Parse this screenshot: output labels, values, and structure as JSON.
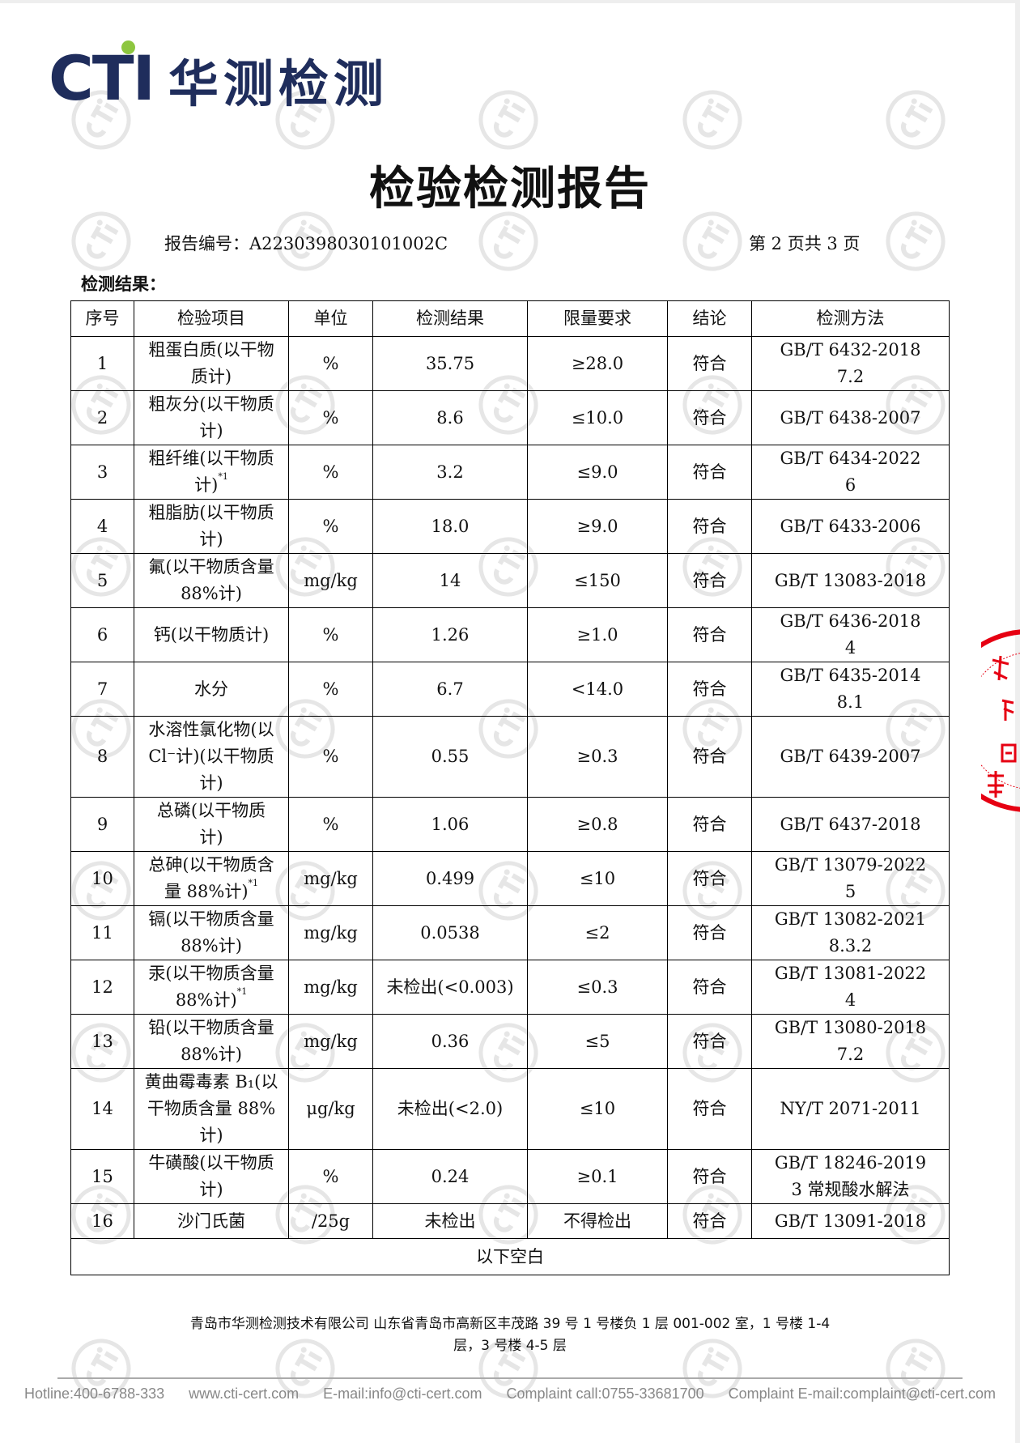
{
  "logo": {
    "brand": "CTI",
    "name_cn": "华测检测",
    "brand_color": "#1f2d5c",
    "dot_color": "#8dc63f"
  },
  "watermark": "CTI",
  "title": "检验检测报告",
  "report_number": "报告编号：A2230398030101002C",
  "page_info": "第 2 页共 3 页",
  "section_title": "检测结果：",
  "table": {
    "headers": [
      "序号",
      "检验项目",
      "单位",
      "检测结果",
      "限量要求",
      "结论",
      "检测方法"
    ],
    "rows": [
      {
        "no": "1",
        "item": "粗蛋白质(以干物\n质计)",
        "sup": "",
        "unit": "%",
        "result": "35.75",
        "limit": "≥28.0",
        "conclusion": "符合",
        "method": "GB/T 6432-2018\n7.2"
      },
      {
        "no": "2",
        "item": "粗灰分(以干物质\n计)",
        "sup": "",
        "unit": "%",
        "result": "8.6",
        "limit": "≤10.0",
        "conclusion": "符合",
        "method": "GB/T 6438-2007"
      },
      {
        "no": "3",
        "item": "粗纤维(以干物质\n计)",
        "sup": "*1",
        "unit": "%",
        "result": "3.2",
        "limit": "≤9.0",
        "conclusion": "符合",
        "method": "GB/T 6434-2022\n6"
      },
      {
        "no": "4",
        "item": "粗脂肪(以干物质\n计)",
        "sup": "",
        "unit": "%",
        "result": "18.0",
        "limit": "≥9.0",
        "conclusion": "符合",
        "method": "GB/T 6433-2006"
      },
      {
        "no": "5",
        "item": "氟(以干物质含量\n88%计)",
        "sup": "",
        "unit": "mg/kg",
        "result": "14",
        "limit": "≤150",
        "conclusion": "符合",
        "method": "GB/T 13083-2018"
      },
      {
        "no": "6",
        "item": "钙(以干物质计)",
        "sup": "",
        "unit": "%",
        "result": "1.26",
        "limit": "≥1.0",
        "conclusion": "符合",
        "method": "GB/T 6436-2018\n4"
      },
      {
        "no": "7",
        "item": "水分",
        "sup": "",
        "unit": "%",
        "result": "6.7",
        "limit": "<14.0",
        "conclusion": "符合",
        "method": "GB/T 6435-2014\n8.1"
      },
      {
        "no": "8",
        "item": "水溶性氯化物(以\nCl⁻计)(以干物质\n计)",
        "sup": "",
        "unit": "%",
        "result": "0.55",
        "limit": "≥0.3",
        "conclusion": "符合",
        "method": "GB/T 6439-2007"
      },
      {
        "no": "9",
        "item": "总磷(以干物质\n计)",
        "sup": "",
        "unit": "%",
        "result": "1.06",
        "limit": "≥0.8",
        "conclusion": "符合",
        "method": "GB/T 6437-2018"
      },
      {
        "no": "10",
        "item": "总砷(以干物质含\n量 88%计)",
        "sup": "*1",
        "unit": "mg/kg",
        "result": "0.499",
        "limit": "≤10",
        "conclusion": "符合",
        "method": "GB/T 13079-2022\n5"
      },
      {
        "no": "11",
        "item": "镉(以干物质含量\n88%计)",
        "sup": "",
        "unit": "mg/kg",
        "result": "0.0538",
        "limit": "≤2",
        "conclusion": "符合",
        "method": "GB/T 13082-2021\n8.3.2"
      },
      {
        "no": "12",
        "item": "汞(以干物质含量\n88%计)",
        "sup": "*1",
        "unit": "mg/kg",
        "result": "未检出(<0.003)",
        "limit": "≤0.3",
        "conclusion": "符合",
        "method": "GB/T 13081-2022\n4"
      },
      {
        "no": "13",
        "item": "铅(以干物质含量\n88%计)",
        "sup": "",
        "unit": "mg/kg",
        "result": "0.36",
        "limit": "≤5",
        "conclusion": "符合",
        "method": "GB/T 13080-2018\n7.2"
      },
      {
        "no": "14",
        "item": "黄曲霉毒素 B₁(以\n干物质含量 88%\n计)",
        "sup": "",
        "unit": "μg/kg",
        "result": "未检出(<2.0)",
        "limit": "≤10",
        "conclusion": "符合",
        "method": "NY/T 2071-2011"
      },
      {
        "no": "15",
        "item": "牛磺酸(以干物质\n计)",
        "sup": "",
        "unit": "%",
        "result": "0.24",
        "limit": "≥0.1",
        "conclusion": "符合",
        "method": "GB/T 18246-2019\n3 常规酸水解法"
      },
      {
        "no": "16",
        "item": "沙门氏菌",
        "sup": "",
        "unit": "/25g",
        "result": "未检出",
        "limit": "不得检出",
        "conclusion": "符合",
        "method": "GB/T 13091-2018"
      }
    ],
    "footer_note": "以下空白"
  },
  "address": "青岛市华测检测技术有限公司  山东省青岛市高新区丰茂路 39 号 1 号楼负 1 层 001-002 室，1 号楼 1-4\n层，3 号楼 4-5 层",
  "contacts": [
    "Hotline:400-6788-333",
    "www.cti-cert.com",
    "E-mail:info@cti-cert.com",
    "Complaint call:0755-33681700",
    "Complaint E-mail:complaint@cti-cert.com"
  ],
  "stamp": {
    "text": "...章",
    "color": "#e60012"
  }
}
